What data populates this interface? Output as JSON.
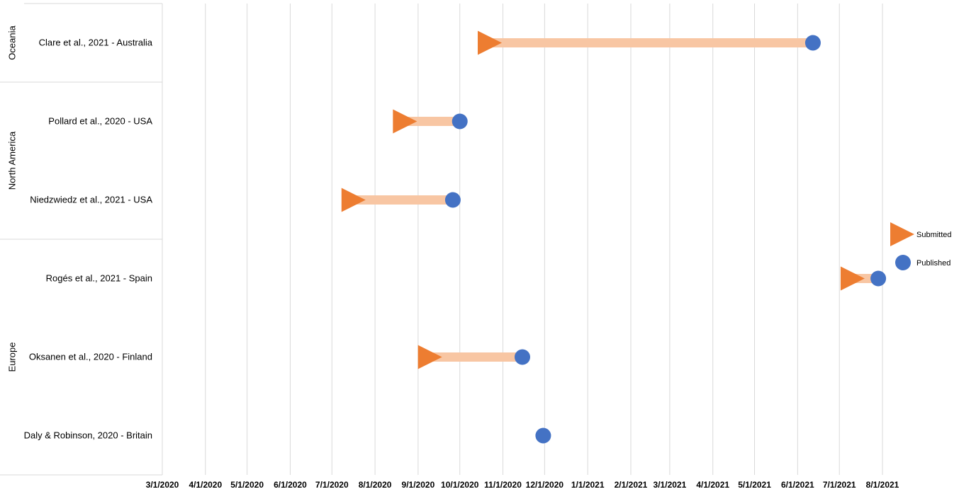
{
  "chart_data": {
    "type": "dumbbell",
    "x_axis": {
      "ticks": [
        "3/1/2020",
        "4/1/2020",
        "5/1/2020",
        "6/1/2020",
        "7/1/2020",
        "8/1/2020",
        "9/1/2020",
        "10/1/2020",
        "11/1/2020",
        "12/1/2020",
        "1/1/2021",
        "2/1/2021",
        "3/1/2021",
        "4/1/2021",
        "5/1/2021",
        "6/1/2021",
        "7/1/2021",
        "8/1/2021"
      ],
      "range": [
        "2020-03-01",
        "2021-08-01"
      ],
      "grid": true
    },
    "regions": [
      {
        "name": "Oceania",
        "rows": [
          "Clare et al., 2021 - Australia"
        ]
      },
      {
        "name": "North America",
        "rows": [
          "Pollard et al., 2020 - USA",
          "Niedzwiedz et al., 2021 - USA"
        ]
      },
      {
        "name": "Europe",
        "rows": [
          "Rogés et al., 2021 - Spain",
          "Oksanen et al., 2020 - Finland",
          "Daly & Robinson, 2020 - Britain"
        ]
      }
    ],
    "rows": [
      {
        "label": "Clare et al., 2021 - Australia",
        "submitted": "2020-10-20",
        "published": "2021-06-12"
      },
      {
        "label": "Pollard et al., 2020 - USA",
        "submitted": "2020-08-20",
        "published": "2020-10-01"
      },
      {
        "label": "Niedzwiedz et al., 2021 - USA",
        "submitted": "2020-07-14",
        "published": "2020-09-26"
      },
      {
        "label": "Rogés et al., 2021 - Spain",
        "submitted": "2021-07-08",
        "published": "2021-07-29"
      },
      {
        "label": "Oksanen et al., 2020 - Finland",
        "submitted": "2020-09-07",
        "published": "2020-11-15"
      },
      {
        "label": "Daly & Robinson, 2020 - Britain",
        "submitted": null,
        "published": "2020-11-30"
      }
    ],
    "legend": {
      "position": "right",
      "items": [
        {
          "name": "Submitted",
          "marker": "triangle-right",
          "color": "#ED7D31"
        },
        {
          "name": "Published",
          "marker": "circle",
          "color": "#4472C4"
        }
      ]
    },
    "colors": {
      "submitted": "#ED7D31",
      "published": "#4472C4",
      "connector": "#F8C6A3",
      "grid": "#D9D9D9"
    }
  }
}
